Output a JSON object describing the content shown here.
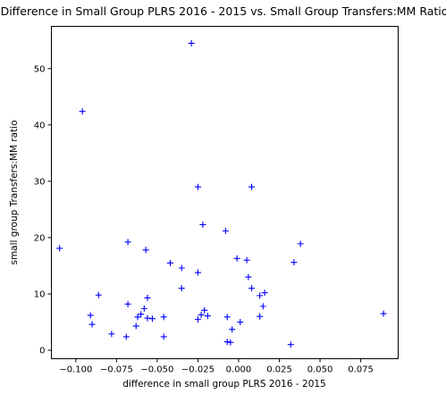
{
  "chart_data": {
    "type": "scatter",
    "title": "Difference in Small Group PLRS 2016 - 2015 vs. Small Group Transfers:MM Ratio",
    "xlabel": "difference in small group PLRS 2016 - 2015",
    "ylabel": "small group Transfers:MM ratio",
    "xlim": [
      -0.115,
      0.098
    ],
    "ylim": [
      -1.5,
      57.5
    ],
    "xticks": [
      -0.1,
      -0.075,
      -0.05,
      -0.025,
      0.0,
      0.025,
      0.05,
      0.075
    ],
    "xtick_labels": [
      "−0.100",
      "−0.075",
      "−0.050",
      "−0.025",
      "0.000",
      "0.025",
      "0.050",
      "0.075"
    ],
    "yticks": [
      0,
      10,
      20,
      30,
      40,
      50
    ],
    "ytick_labels": [
      "0",
      "10",
      "20",
      "30",
      "40",
      "50"
    ],
    "grid": false,
    "marker": "+",
    "color": "#0000ff",
    "points": [
      {
        "x": -0.11,
        "y": 18.1
      },
      {
        "x": -0.096,
        "y": 42.4
      },
      {
        "x": -0.091,
        "y": 6.2
      },
      {
        "x": -0.09,
        "y": 4.6
      },
      {
        "x": -0.086,
        "y": 9.8
      },
      {
        "x": -0.078,
        "y": 2.9
      },
      {
        "x": -0.069,
        "y": 2.4
      },
      {
        "x": -0.068,
        "y": 19.2
      },
      {
        "x": -0.068,
        "y": 8.2
      },
      {
        "x": -0.063,
        "y": 4.3
      },
      {
        "x": -0.062,
        "y": 5.9
      },
      {
        "x": -0.06,
        "y": 6.4
      },
      {
        "x": -0.058,
        "y": 7.4
      },
      {
        "x": -0.057,
        "y": 17.8
      },
      {
        "x": -0.056,
        "y": 9.3
      },
      {
        "x": -0.056,
        "y": 5.7
      },
      {
        "x": -0.053,
        "y": 5.6
      },
      {
        "x": -0.046,
        "y": 5.9
      },
      {
        "x": -0.046,
        "y": 2.4
      },
      {
        "x": -0.042,
        "y": 15.5
      },
      {
        "x": -0.035,
        "y": 14.6
      },
      {
        "x": -0.035,
        "y": 11.0
      },
      {
        "x": -0.029,
        "y": 54.5
      },
      {
        "x": -0.025,
        "y": 29.0
      },
      {
        "x": -0.025,
        "y": 13.8
      },
      {
        "x": -0.025,
        "y": 5.5
      },
      {
        "x": -0.023,
        "y": 6.3
      },
      {
        "x": -0.022,
        "y": 22.3
      },
      {
        "x": -0.021,
        "y": 7.1
      },
      {
        "x": -0.019,
        "y": 6.1
      },
      {
        "x": -0.008,
        "y": 21.2
      },
      {
        "x": -0.007,
        "y": 1.5
      },
      {
        "x": -0.007,
        "y": 5.9
      },
      {
        "x": -0.005,
        "y": 1.4
      },
      {
        "x": -0.004,
        "y": 3.7
      },
      {
        "x": -0.001,
        "y": 16.3
      },
      {
        "x": 0.001,
        "y": 5.0
      },
      {
        "x": 0.005,
        "y": 16.0
      },
      {
        "x": 0.006,
        "y": 13.0
      },
      {
        "x": 0.008,
        "y": 29.0
      },
      {
        "x": 0.008,
        "y": 11.0
      },
      {
        "x": 0.013,
        "y": 9.7
      },
      {
        "x": 0.013,
        "y": 6.0
      },
      {
        "x": 0.015,
        "y": 7.8
      },
      {
        "x": 0.016,
        "y": 10.2
      },
      {
        "x": 0.032,
        "y": 1.0
      },
      {
        "x": 0.034,
        "y": 15.6
      },
      {
        "x": 0.038,
        "y": 18.9
      },
      {
        "x": 0.089,
        "y": 6.5
      }
    ]
  }
}
